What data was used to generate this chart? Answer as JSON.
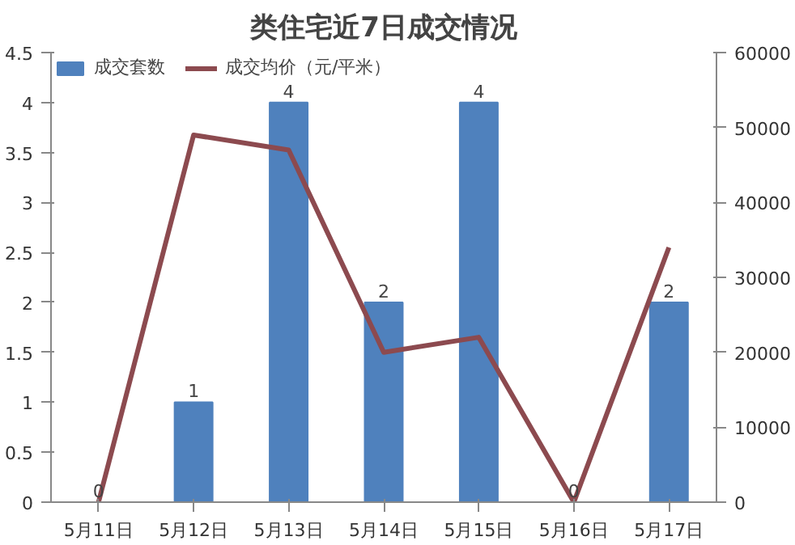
{
  "chart_data": {
    "type": "bar",
    "title": "类住宅近7日成交情况",
    "categories": [
      "5月11日",
      "5月12日",
      "5月13日",
      "5月14日",
      "5月15日",
      "5月16日",
      "5月17日"
    ],
    "series": [
      {
        "name": "成交套数",
        "color": "#4f81bd",
        "values": [
          0,
          1,
          4,
          2,
          4,
          0,
          2
        ],
        "value_labels": [
          "0",
          "1",
          "4",
          "2",
          "4",
          "0",
          "2"
        ]
      },
      {
        "name": "成交均价（元/平米）",
        "type": "line",
        "axis": "y2",
        "color": "#8c4a4f",
        "values": [
          0,
          49000,
          47000,
          20000,
          22000,
          0,
          34000
        ]
      }
    ],
    "ylim": [
      0,
      4.5
    ],
    "yticks": [
      0,
      0.5,
      1,
      1.5,
      2,
      2.5,
      3,
      3.5,
      4,
      4.5
    ],
    "y2lim": [
      0,
      60000
    ],
    "y2ticks": [
      0,
      10000,
      20000,
      30000,
      40000,
      50000,
      60000
    ],
    "grid": false,
    "legend": "top left"
  }
}
